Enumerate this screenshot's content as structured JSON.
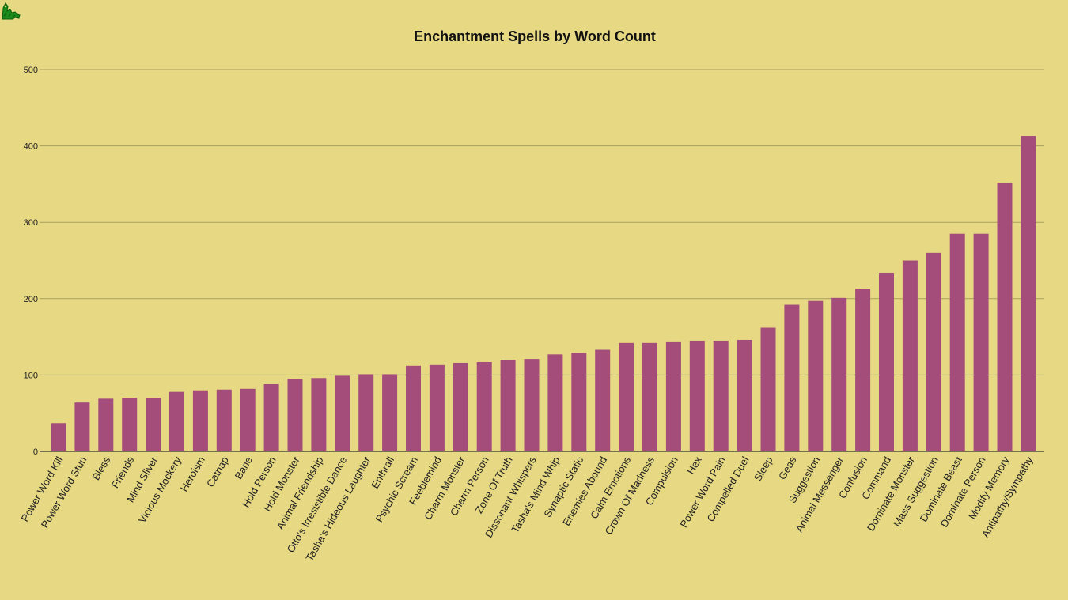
{
  "logo": {
    "icon": "dragon-logo-icon",
    "color": "#1a8a1a"
  },
  "chart_data": {
    "type": "bar",
    "title": "Enchantment Spells by Word Count",
    "xlabel": "",
    "ylabel": "",
    "ylim": [
      0,
      500
    ],
    "yticks": [
      0,
      100,
      200,
      300,
      400,
      500
    ],
    "grid": true,
    "legend": "none",
    "bar_color": "#a44d7a",
    "background": "#e7d983",
    "gridline_color": "#a89f5e",
    "categories": [
      "Power Word Kill",
      "Power Word Stun",
      "Bless",
      "Friends",
      "Mind Sliver",
      "Vicious Mockery",
      "Heroism",
      "Catnap",
      "Bane",
      "Hold Person",
      "Hold Monster",
      "Animal Friendship",
      "Otto's Irresistible Dance",
      "Tasha's Hideous Laughter",
      "Enthrall",
      "Psychic Scream",
      "Feeblemind",
      "Charm Monster",
      "Charm Person",
      "Zone Of Truth",
      "Dissonant Whispers",
      "Tasha's Mind Whip",
      "Synaptic Static",
      "Enemies Abound",
      "Calm Emotions",
      "Crown Of Madness",
      "Compulsion",
      "Hex",
      "Power Word Pain",
      "Compelled Duel",
      "Sleep",
      "Geas",
      "Suggestion",
      "Animal Messenger",
      "Confusion",
      "Command",
      "Dominate Monster",
      "Mass Suggestion",
      "Dominate Beast",
      "Dominate Person",
      "Modify Memory",
      "Antipathy/Sympathy"
    ],
    "values": [
      37,
      64,
      69,
      70,
      70,
      78,
      80,
      81,
      82,
      88,
      95,
      96,
      99,
      101,
      101,
      112,
      113,
      116,
      117,
      120,
      121,
      127,
      129,
      133,
      142,
      142,
      144,
      145,
      145,
      146,
      162,
      192,
      197,
      201,
      213,
      234,
      250,
      260,
      285,
      285,
      352,
      413
    ]
  }
}
